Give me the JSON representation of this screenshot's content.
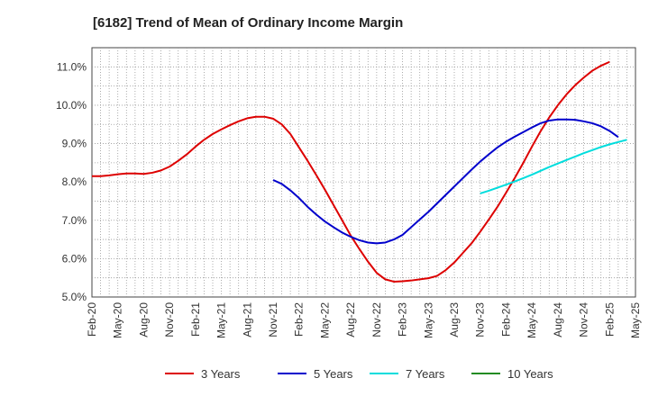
{
  "chart_data": {
    "type": "line",
    "title": "[6182]  Trend of Mean of Ordinary Income Margin",
    "xlabel": "",
    "ylabel": "",
    "y_ticks": [
      "5.0%",
      "6.0%",
      "7.0%",
      "8.0%",
      "9.0%",
      "10.0%",
      "11.0%"
    ],
    "ylim": [
      5.0,
      11.5
    ],
    "x_tick_labels": [
      "Feb-20",
      "May-20",
      "Aug-20",
      "Nov-20",
      "Feb-21",
      "May-21",
      "Aug-21",
      "Nov-21",
      "Feb-22",
      "May-22",
      "Aug-22",
      "Nov-22",
      "Feb-23",
      "May-23",
      "Aug-23",
      "Nov-23",
      "Feb-24",
      "May-24",
      "Aug-24",
      "Nov-24",
      "Feb-25",
      "May-25"
    ],
    "grid": true,
    "legend_position": "bottom",
    "series": [
      {
        "name": "3 Years",
        "color": "#dd0000",
        "start_month": 0,
        "values": [
          8.15,
          8.15,
          8.17,
          8.2,
          8.22,
          8.22,
          8.21,
          8.24,
          8.3,
          8.4,
          8.55,
          8.72,
          8.92,
          9.1,
          9.25,
          9.37,
          9.48,
          9.58,
          9.66,
          9.7,
          9.7,
          9.65,
          9.5,
          9.25,
          8.9,
          8.55,
          8.18,
          7.8,
          7.4,
          7.0,
          6.6,
          6.25,
          5.92,
          5.63,
          5.46,
          5.4,
          5.41,
          5.43,
          5.46,
          5.49,
          5.55,
          5.7,
          5.9,
          6.15,
          6.4,
          6.7,
          7.02,
          7.35,
          7.72,
          8.1,
          8.5,
          8.92,
          9.32,
          9.68,
          10.0,
          10.28,
          10.52,
          10.72,
          10.9,
          11.03,
          11.13
        ]
      },
      {
        "name": "5 Years",
        "color": "#0000cc",
        "start_month": 21,
        "values": [
          8.05,
          7.95,
          7.78,
          7.58,
          7.35,
          7.15,
          6.97,
          6.82,
          6.68,
          6.57,
          6.48,
          6.42,
          6.4,
          6.42,
          6.5,
          6.62,
          6.82,
          7.02,
          7.22,
          7.44,
          7.66,
          7.88,
          8.1,
          8.32,
          8.53,
          8.72,
          8.9,
          9.05,
          9.18,
          9.3,
          9.42,
          9.53,
          9.6,
          9.63,
          9.63,
          9.62,
          9.58,
          9.53,
          9.45,
          9.33,
          9.17
        ]
      },
      {
        "name": "7 Years",
        "color": "#00dddd",
        "start_month": 45,
        "values": [
          7.7,
          7.77,
          7.85,
          7.93,
          8.01,
          8.1,
          8.19,
          8.29,
          8.39,
          8.48,
          8.57,
          8.66,
          8.75,
          8.83,
          8.91,
          8.98,
          9.04,
          9.1
        ]
      },
      {
        "name": "10 Years",
        "color": "#228b22",
        "start_month": 0,
        "values": []
      }
    ]
  }
}
